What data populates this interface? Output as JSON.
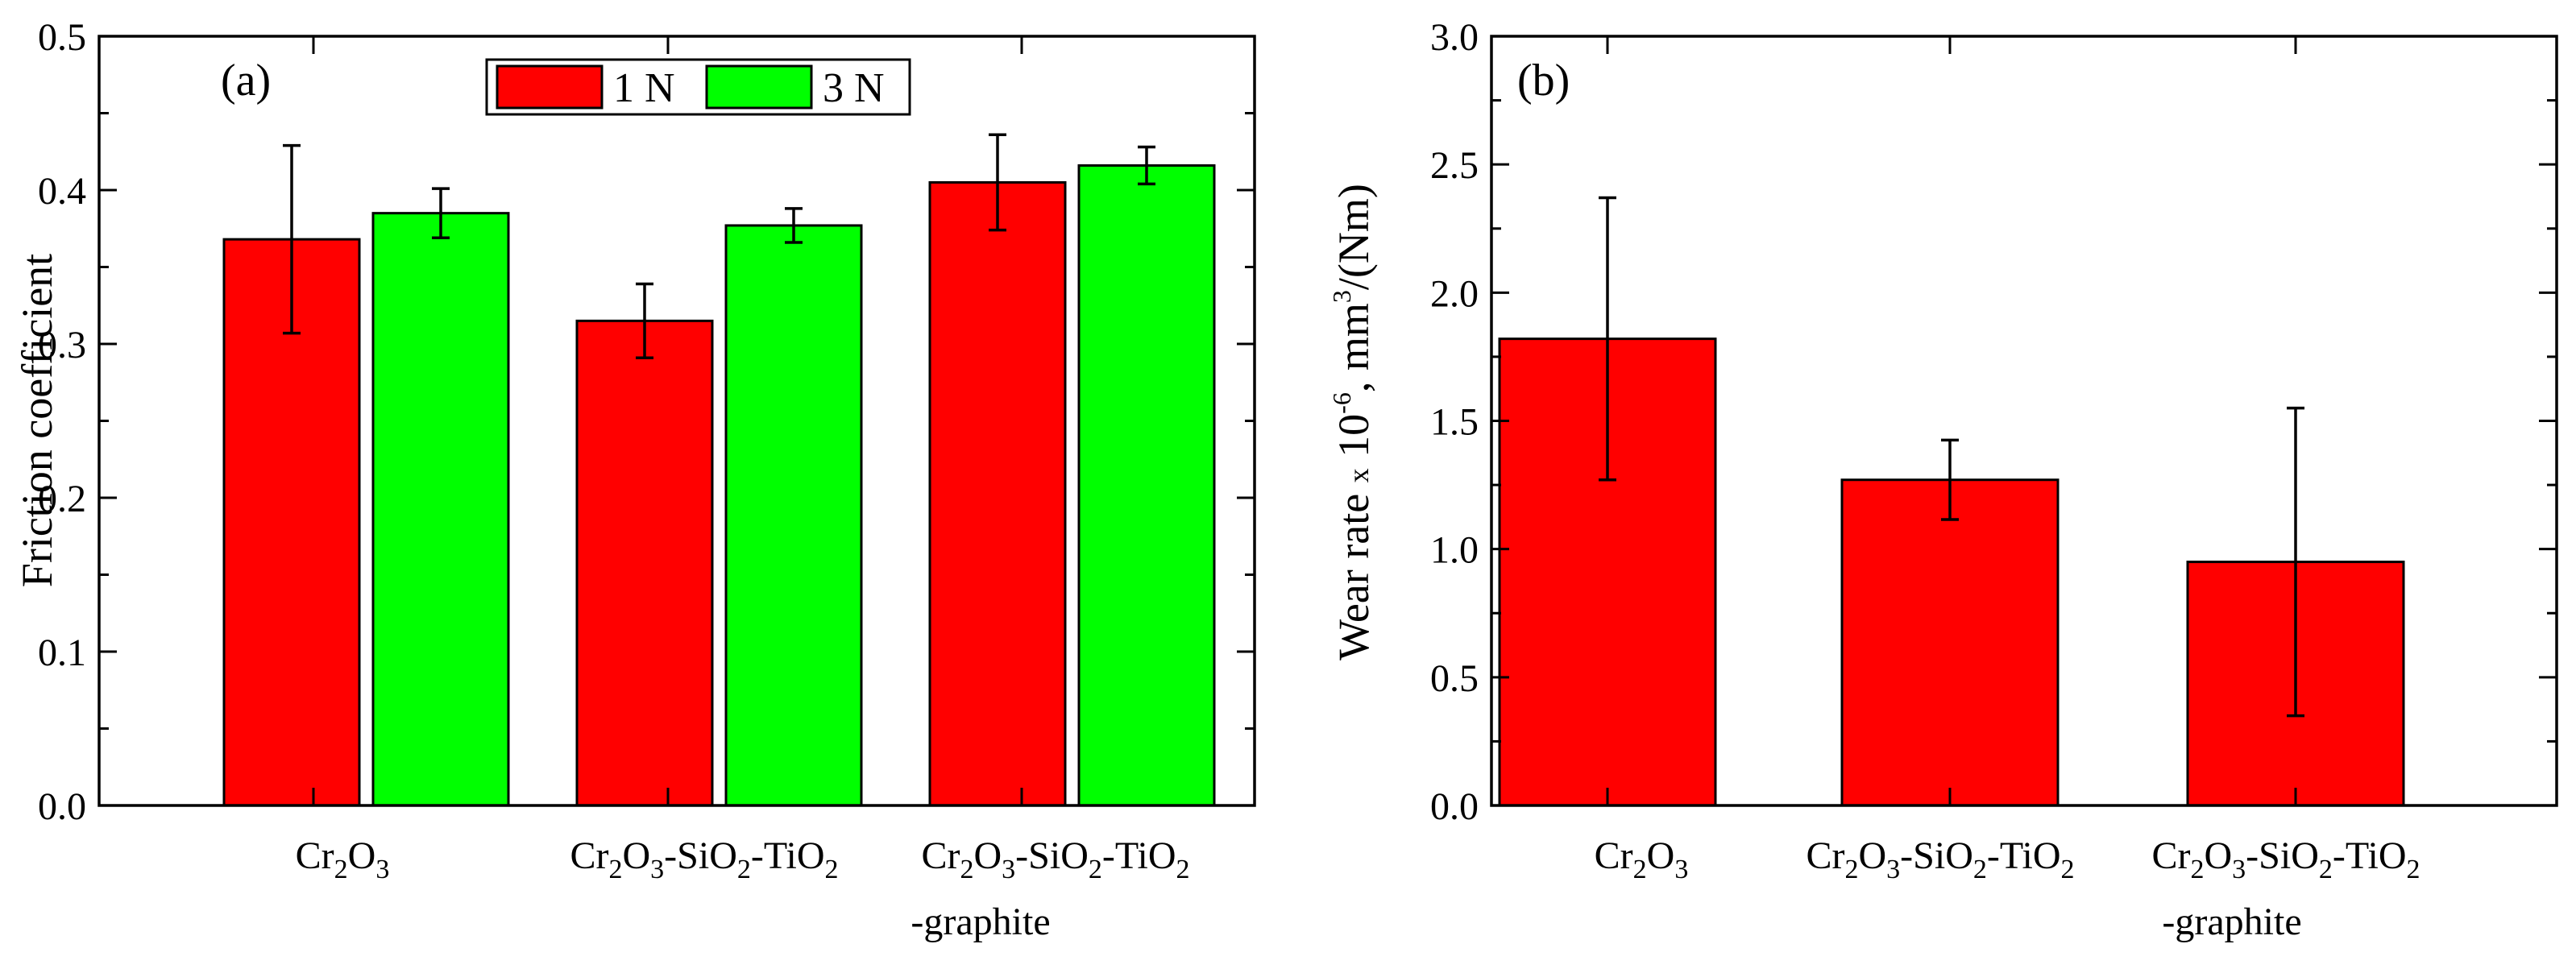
{
  "chart_data": [
    {
      "type": "bar",
      "panel_label": "(a)",
      "categories": [
        {
          "label_parts": [
            [
              "Cr",
              ""
            ],
            [
              "2",
              "sub"
            ],
            [
              "O",
              ""
            ],
            [
              "3",
              "sub"
            ]
          ],
          "label_line2": ""
        },
        {
          "label_parts": [
            [
              "Cr",
              ""
            ],
            [
              "2",
              "sub"
            ],
            [
              "O",
              ""
            ],
            [
              "3",
              "sub"
            ],
            [
              "-SiO",
              ""
            ],
            [
              "2",
              "sub"
            ],
            [
              "-TiO",
              ""
            ],
            [
              "2",
              "sub"
            ]
          ],
          "label_line2": ""
        },
        {
          "label_parts": [
            [
              "Cr",
              ""
            ],
            [
              "2",
              "sub"
            ],
            [
              "O",
              ""
            ],
            [
              "3",
              "sub"
            ],
            [
              "-SiO",
              ""
            ],
            [
              "2",
              "sub"
            ],
            [
              "-TiO",
              ""
            ],
            [
              "2",
              "sub"
            ]
          ],
          "label_line2": "-graphite"
        }
      ],
      "series": [
        {
          "name": "1 N",
          "color": "#ff0000",
          "values": [
            0.368,
            0.315,
            0.405
          ],
          "errors": [
            0.061,
            0.024,
            0.031
          ]
        },
        {
          "name": "3 N",
          "color": "#00ff00",
          "values": [
            0.385,
            0.377,
            0.416
          ],
          "errors": [
            0.016,
            0.011,
            0.012
          ]
        }
      ],
      "ylabel": "Friction coefficient",
      "ylim": [
        0.0,
        0.5
      ],
      "yticks": [
        "0.0",
        "0.1",
        "0.2",
        "0.3",
        "0.4",
        "0.5"
      ],
      "legend": "top-center"
    },
    {
      "type": "bar",
      "panel_label": "(b)",
      "categories": [
        {
          "label_parts": [
            [
              "Cr",
              ""
            ],
            [
              "2",
              "sub"
            ],
            [
              "O",
              ""
            ],
            [
              "3",
              "sub"
            ]
          ],
          "label_line2": ""
        },
        {
          "label_parts": [
            [
              "Cr",
              ""
            ],
            [
              "2",
              "sub"
            ],
            [
              "O",
              ""
            ],
            [
              "3",
              "sub"
            ],
            [
              "-SiO",
              ""
            ],
            [
              "2",
              "sub"
            ],
            [
              "-TiO",
              ""
            ],
            [
              "2",
              "sub"
            ]
          ],
          "label_line2": ""
        },
        {
          "label_parts": [
            [
              "Cr",
              ""
            ],
            [
              "2",
              "sub"
            ],
            [
              "O",
              ""
            ],
            [
              "3",
              "sub"
            ],
            [
              "-SiO",
              ""
            ],
            [
              "2",
              "sub"
            ],
            [
              "-TiO",
              ""
            ],
            [
              "2",
              "sub"
            ]
          ],
          "label_line2": "-graphite"
        }
      ],
      "series": [
        {
          "name": "Wear rate",
          "color": "#ff0000",
          "values": [
            1.82,
            1.27,
            0.95
          ],
          "errors": [
            0.55,
            0.155,
            0.6
          ]
        }
      ],
      "ylabel_parts": [
        [
          "Wear rate ",
          ""
        ],
        [
          "x",
          "small"
        ],
        [
          " 10",
          ""
        ],
        [
          "-6",
          "sup"
        ],
        [
          ", mm",
          ""
        ],
        [
          "3",
          "sup"
        ],
        [
          "/(Nm)",
          ""
        ]
      ],
      "ylim": [
        0.0,
        3.0
      ],
      "yticks": [
        "0.0",
        "0.5",
        "1.0",
        "1.5",
        "2.0",
        "2.5",
        "3.0"
      ]
    }
  ]
}
